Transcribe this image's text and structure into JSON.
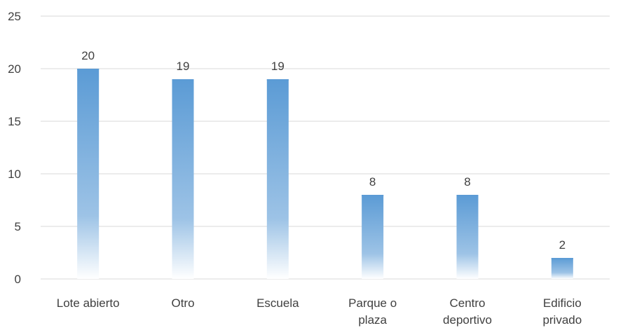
{
  "chart_data": {
    "type": "bar",
    "title": "",
    "xlabel": "",
    "ylabel": "",
    "categories": [
      [
        "Lote abierto"
      ],
      [
        "Otro"
      ],
      [
        "Escuela"
      ],
      [
        "Parque o",
        "plaza"
      ],
      [
        "Centro",
        "deportivo"
      ],
      [
        "Edificio",
        "privado"
      ]
    ],
    "values": [
      20,
      19,
      19,
      8,
      8,
      2
    ],
    "data_labels": [
      "20",
      "19",
      "19",
      "8",
      "8",
      "2"
    ],
    "yticks": [
      0,
      5,
      10,
      15,
      20,
      25
    ],
    "ylim": [
      0,
      25
    ],
    "grid": true,
    "legend": "none",
    "colors": {
      "bar_top": "#5b9bd5",
      "bar_bottom": "#ffffff",
      "grid": "#d9d9d9",
      "text": "#404040"
    }
  }
}
